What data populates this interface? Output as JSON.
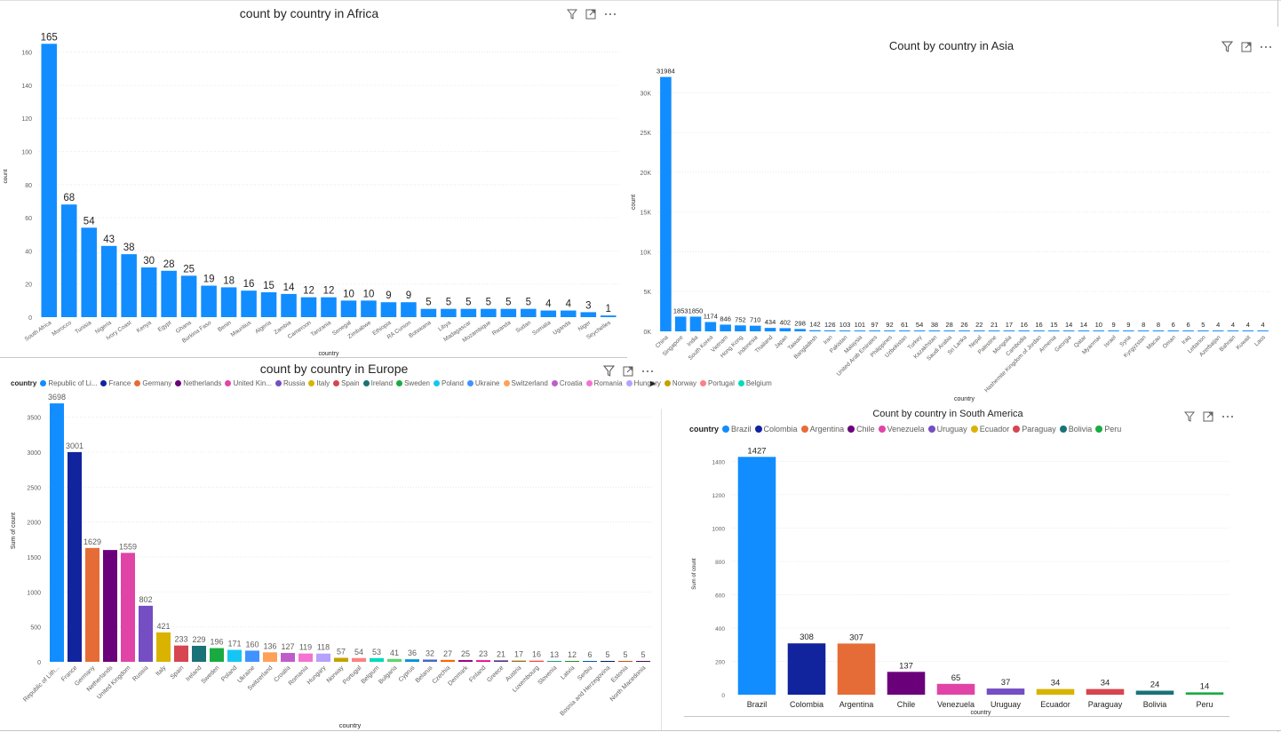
{
  "colors": {
    "bar": "#118DFF",
    "grid": "#e8e8e8",
    "text": "#252423",
    "axis": "#605e5c"
  },
  "icons": [
    "filter-icon",
    "focus-mode-icon",
    "more-options-icon"
  ],
  "chart_data": [
    {
      "id": "africa",
      "type": "bar",
      "title": "count by country in Africa",
      "xlabel": "country",
      "ylabel": "count",
      "ylim": [
        0,
        170
      ],
      "yticks": [
        0,
        20,
        40,
        60,
        80,
        100,
        120,
        140,
        160
      ],
      "ytick_labels": [
        "0",
        "20",
        "40",
        "60",
        "80",
        "100",
        "120",
        "140",
        "160"
      ],
      "grid": true,
      "categories": [
        "South Africa",
        "Morocco",
        "Tunisia",
        "Nigeria",
        "Ivory Coast",
        "Kenya",
        "Egypt",
        "Ghana",
        "Burkina Faso",
        "Benin",
        "Mauritius",
        "Algeria",
        "Zambia",
        "Cameroon",
        "Tanzania",
        "Senegal",
        "Zimbabwe",
        "Ethiopia",
        "RA Cunion",
        "Botswana",
        "Libya",
        "Madagascar",
        "Mozambique",
        "Rwanda",
        "Sudan",
        "Somalia",
        "Uganda",
        "Niger",
        "Seychelles"
      ],
      "values": [
        165,
        68,
        54,
        43,
        38,
        30,
        28,
        25,
        19,
        18,
        16,
        15,
        14,
        12,
        12,
        10,
        10,
        9,
        9,
        5,
        5,
        5,
        5,
        5,
        5,
        4,
        4,
        3,
        1
      ]
    },
    {
      "id": "asia",
      "type": "bar",
      "title": "Count by country in Asia",
      "xlabel": "country",
      "ylabel": "count",
      "ylim": [
        0,
        32500
      ],
      "yticks": [
        0,
        5000,
        10000,
        15000,
        20000,
        25000,
        30000
      ],
      "ytick_labels": [
        "0K",
        "5K",
        "10K",
        "15K",
        "20K",
        "25K",
        "30K"
      ],
      "grid": true,
      "categories": [
        "China",
        "Singapore",
        "India",
        "South Korea",
        "Vietnam",
        "Hong Kong",
        "Indonesia",
        "Thailand",
        "Japan",
        "Taiwan",
        "Bangladesh",
        "Iran",
        "Pakistan",
        "Malaysia",
        "United Arab Emirates",
        "Philippines",
        "Uzbekistan",
        "Turkey",
        "Kazakhstan",
        "Saudi Arabia",
        "Sri Lanka",
        "Nepal",
        "Palestine",
        "Mongolia",
        "Cambodia",
        "Hashemite Kingdom of Jordan",
        "Armenia",
        "Georgia",
        "Qatar",
        "Myanmar",
        "Israel",
        "Syria",
        "Kyrgyzstan",
        "Macao",
        "Oman",
        "Iraq",
        "Lebanon",
        "Azerbaijan",
        "Bahrain",
        "Kuwait",
        "Laos"
      ],
      "values": [
        31984,
        1853,
        1850,
        1174,
        846,
        752,
        710,
        434,
        402,
        298,
        142,
        126,
        103,
        101,
        97,
        92,
        61,
        54,
        38,
        28,
        26,
        22,
        21,
        17,
        16,
        16,
        15,
        14,
        14,
        10,
        9,
        9,
        8,
        8,
        6,
        6,
        5,
        4,
        4,
        4,
        4
      ]
    },
    {
      "id": "europe",
      "type": "bar",
      "title": "count by country in Europe",
      "xlabel": "country",
      "ylabel": "Sum of count",
      "ylim": [
        0,
        3750
      ],
      "yticks": [
        0,
        500,
        1000,
        1500,
        2000,
        2500,
        3000,
        3500
      ],
      "ytick_labels": [
        "0",
        "500",
        "1000",
        "1500",
        "2000",
        "2500",
        "3000",
        "3500"
      ],
      "grid": true,
      "legend_title": "country",
      "legend_labels": [
        "Republic of Li...",
        "France",
        "Germany",
        "Netherlands",
        "United Kin...",
        "Russia",
        "Italy",
        "Spain",
        "Ireland",
        "Sweden",
        "Poland",
        "Ukraine",
        "Switzerland",
        "Croatia",
        "Romania",
        "Hungary",
        "Norway",
        "Portugal",
        "Belgium"
      ],
      "categories": [
        "Republic of Lith...",
        "France",
        "Germany",
        "Netherlands",
        "United Kingdom",
        "Russia",
        "Italy",
        "Spain",
        "Ireland",
        "Sweden",
        "Poland",
        "Ukraine",
        "Switzerland",
        "Croatia",
        "Romania",
        "Hungary",
        "Norway",
        "Portugal",
        "Belgium",
        "Bulgaria",
        "Cyprus",
        "Belarus",
        "Czechia",
        "Denmark",
        "Finland",
        "Greece",
        "Austria",
        "Luxembourg",
        "Slovenia",
        "Latvia",
        "Serbia",
        "Bosnia and Herzegovina",
        "Estonia",
        "North Macedonia"
      ],
      "values": [
        3698,
        3001,
        1629,
        1600,
        1559,
        802,
        421,
        233,
        229,
        196,
        171,
        160,
        136,
        127,
        119,
        118,
        57,
        54,
        53,
        41,
        36,
        32,
        27,
        25,
        23,
        21,
        17,
        16,
        13,
        12,
        6,
        5,
        5,
        5
      ],
      "value_labels": [
        "3698",
        "3001",
        "1629",
        "",
        "1559",
        "802",
        "421",
        "233",
        "229",
        "196",
        "171",
        "160",
        "136",
        "127",
        "119",
        "118",
        "57",
        "54",
        "53",
        "41",
        "36",
        "32",
        "27",
        "25",
        "23",
        "21",
        "17",
        "16",
        "13",
        "12",
        "6",
        "5",
        "5",
        "5"
      ],
      "bar_colors": [
        "#118DFF",
        "#12239E",
        "#E66C37",
        "#6B007B",
        "#E044A7",
        "#744EC2",
        "#D9B300",
        "#D64550",
        "#197278",
        "#1AAB40",
        "#15C6F4",
        "#4092FF",
        "#FFA058",
        "#BE5DC9",
        "#F472D0",
        "#B5A1FF",
        "#C4A200",
        "#FF8080",
        "#00DBBC",
        "#5BD667",
        "#0091D5",
        "#4668C5",
        "#FF6300",
        "#99008A",
        "#EC008C",
        "#533285",
        "#99700A",
        "#FF4141",
        "#1F9A85",
        "#25891C",
        "#0057A2",
        "#002050",
        "#C94F0F",
        "#450F54"
      ]
    },
    {
      "id": "south-america",
      "type": "bar",
      "title": "Count by country in South America",
      "xlabel": "country",
      "ylabel": "Sum of count",
      "ylim": [
        0,
        1450
      ],
      "yticks": [
        0,
        200,
        400,
        600,
        800,
        1000,
        1200,
        1400
      ],
      "ytick_labels": [
        "0",
        "200",
        "400",
        "600",
        "800",
        "1000",
        "1200",
        "1400"
      ],
      "grid": true,
      "legend_title": "country",
      "legend_labels": [
        "Brazil",
        "Colombia",
        "Argentina",
        "Chile",
        "Venezuela",
        "Uruguay",
        "Ecuador",
        "Paraguay",
        "Bolivia",
        "Peru"
      ],
      "categories": [
        "Brazil",
        "Colombia",
        "Argentina",
        "Chile",
        "Venezuela",
        "Uruguay",
        "Ecuador",
        "Paraguay",
        "Bolivia",
        "Peru"
      ],
      "values": [
        1427,
        308,
        307,
        137,
        65,
        37,
        34,
        34,
        24,
        14
      ],
      "bar_colors": [
        "#118DFF",
        "#12239E",
        "#E66C37",
        "#6B007B",
        "#E044A7",
        "#744EC2",
        "#D9B300",
        "#D64550",
        "#197278",
        "#1AAB40"
      ]
    }
  ]
}
